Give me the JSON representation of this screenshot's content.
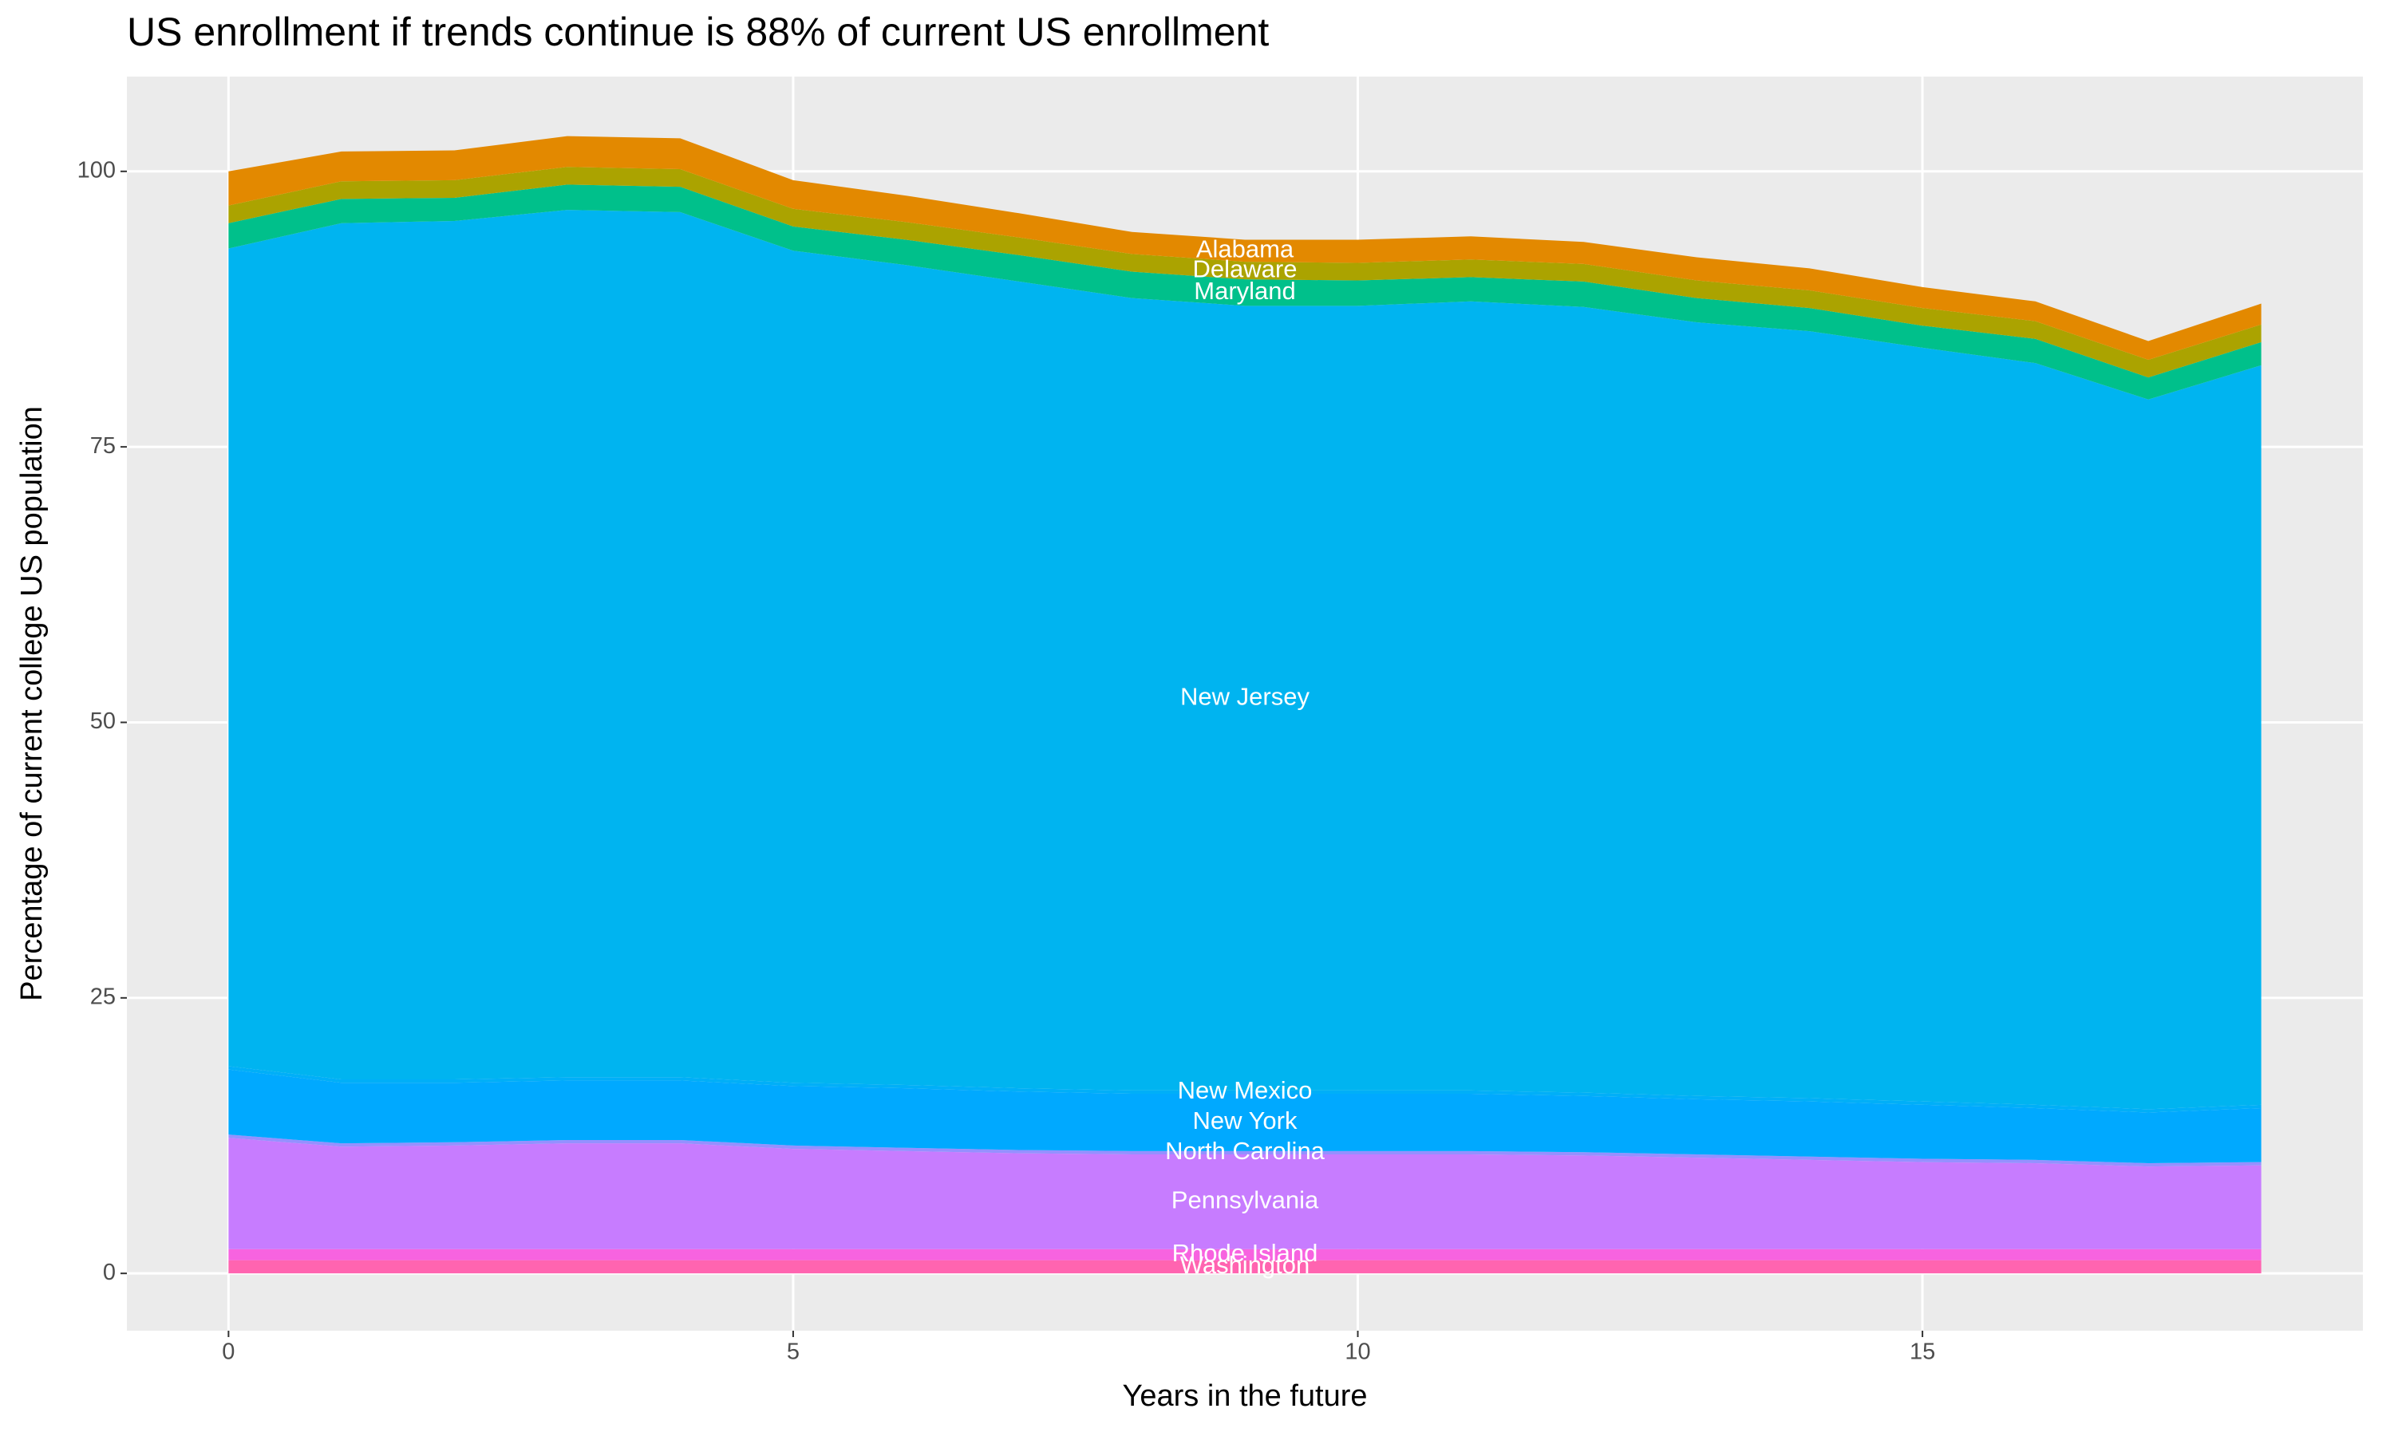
{
  "chart_data": {
    "type": "stacked-area",
    "title": "US enrollment if trends continue is 88% of current US enrollment",
    "x_label": "Years in the future",
    "y_label": "Percentage of current college US population",
    "x": [
      0,
      1,
      2,
      3,
      4,
      5,
      6,
      7,
      8,
      9,
      10,
      11,
      12,
      13,
      14,
      15,
      16,
      17,
      18
    ],
    "series": [
      {
        "name": "Washington",
        "color": "#ff64b0",
        "values": [
          1.2,
          1.2,
          1.2,
          1.2,
          1.2,
          1.2,
          1.2,
          1.2,
          1.2,
          1.2,
          1.2,
          1.2,
          1.2,
          1.2,
          1.2,
          1.2,
          1.2,
          1.2,
          1.2
        ]
      },
      {
        "name": "Rhode Island",
        "color": "#f763e0",
        "values": [
          1.0,
          1.0,
          1.0,
          1.0,
          1.0,
          1.0,
          1.0,
          1.0,
          1.0,
          1.0,
          1.0,
          1.0,
          1.0,
          1.0,
          1.0,
          1.0,
          1.0,
          1.0,
          1.0
        ]
      },
      {
        "name": "Pennsylvania",
        "color": "#c77cff",
        "values": [
          10.1,
          9.3,
          9.4,
          9.6,
          9.6,
          9.1,
          8.9,
          8.7,
          8.6,
          8.6,
          8.6,
          8.6,
          8.5,
          8.3,
          8.1,
          7.9,
          7.8,
          7.5,
          7.6
        ]
      },
      {
        "name": "North Carolina",
        "color": "#9590ff",
        "values": [
          0.3,
          0.3,
          0.3,
          0.3,
          0.3,
          0.3,
          0.3,
          0.3,
          0.3,
          0.3,
          0.3,
          0.3,
          0.3,
          0.3,
          0.3,
          0.3,
          0.3,
          0.3,
          0.3
        ]
      },
      {
        "name": "New York",
        "color": "#00a9ff",
        "values": [
          5.9,
          5.5,
          5.4,
          5.4,
          5.4,
          5.4,
          5.4,
          5.3,
          5.2,
          5.2,
          5.2,
          5.2,
          5.1,
          5.0,
          5.0,
          4.9,
          4.7,
          4.6,
          4.9
        ]
      },
      {
        "name": "New Mexico",
        "color": "#00aff8",
        "values": [
          0.3,
          0.3,
          0.3,
          0.3,
          0.3,
          0.3,
          0.3,
          0.3,
          0.3,
          0.3,
          0.3,
          0.3,
          0.3,
          0.3,
          0.3,
          0.3,
          0.3,
          0.3,
          0.3
        ]
      },
      {
        "name": "New Jersey",
        "color": "#00b4f0",
        "values": [
          74.2,
          77.7,
          77.9,
          78.7,
          78.5,
          75.5,
          74.4,
          73.2,
          71.9,
          71.2,
          71.2,
          71.6,
          71.3,
          70.2,
          69.6,
          68.4,
          67.3,
          64.4,
          67.1
        ]
      },
      {
        "name": "Maryland",
        "color": "#00c08b",
        "values": [
          2.3,
          2.2,
          2.1,
          2.3,
          2.3,
          2.2,
          2.3,
          2.4,
          2.4,
          2.4,
          2.3,
          2.2,
          2.3,
          2.2,
          2.1,
          2.0,
          2.2,
          2.0,
          2.1
        ]
      },
      {
        "name": "Delaware",
        "color": "#aba300",
        "values": [
          1.6,
          1.6,
          1.6,
          1.6,
          1.6,
          1.6,
          1.6,
          1.6,
          1.6,
          1.6,
          1.6,
          1.6,
          1.6,
          1.6,
          1.6,
          1.6,
          1.6,
          1.6,
          1.6
        ]
      },
      {
        "name": "Alabama",
        "color": "#e38900",
        "values": [
          3.1,
          2.7,
          2.7,
          2.8,
          2.8,
          2.6,
          2.4,
          2.2,
          2.0,
          2.0,
          2.1,
          2.1,
          2.0,
          2.1,
          2.0,
          1.9,
          1.8,
          1.7,
          1.9
        ]
      }
    ],
    "xlim": [
      -0.9,
      18.9
    ],
    "ylim": [
      -5.2,
      108.6
    ],
    "xticks": [
      0,
      5,
      10,
      15
    ],
    "yticks": [
      0,
      25,
      50,
      75,
      100
    ],
    "grid": true
  }
}
